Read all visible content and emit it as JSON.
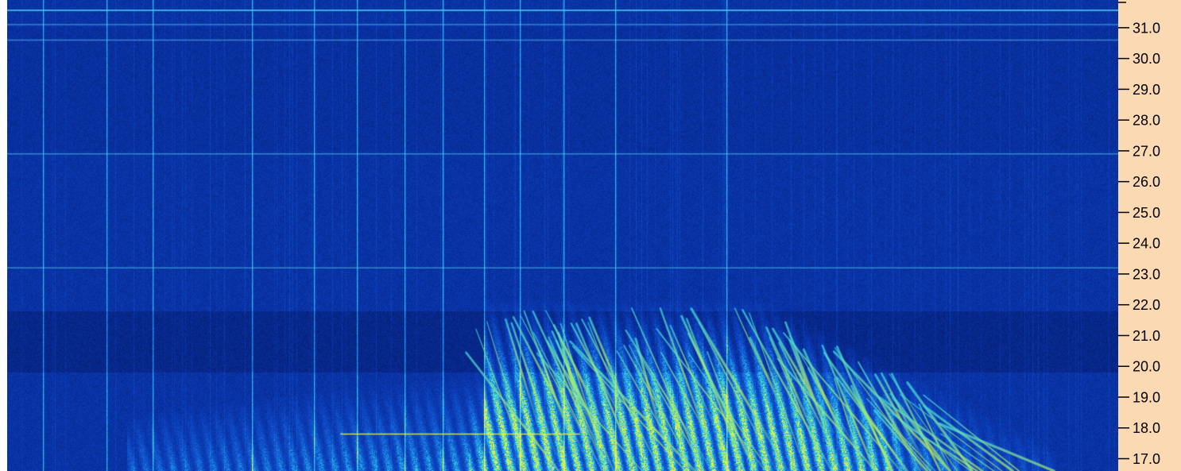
{
  "colors": {
    "background": "#fbd9b3",
    "plot_base": "#0a3fb0",
    "plot_dark": "#07237a",
    "trace_cyan": "#3fd6ee",
    "trace_yellow": "#e8f04a"
  },
  "chart_data": {
    "type": "heatmap",
    "title": "",
    "xlabel": "",
    "ylabel": "",
    "colormap": "blue-cyan-yellow",
    "y_axis": {
      "position": "right",
      "ylim": [
        16.6,
        31.9
      ],
      "ticks": [
        "31.0",
        "30.0",
        "29.0",
        "28.0",
        "27.0",
        "26.0",
        "25.0",
        "24.0",
        "23.0",
        "22.0",
        "21.0",
        "20.0",
        "19.0",
        "18.0",
        "17.0"
      ]
    },
    "horizontal_lines": [
      31.1,
      30.6,
      26.9,
      23.2,
      17.8
    ],
    "grid": false,
    "legend": "none"
  }
}
